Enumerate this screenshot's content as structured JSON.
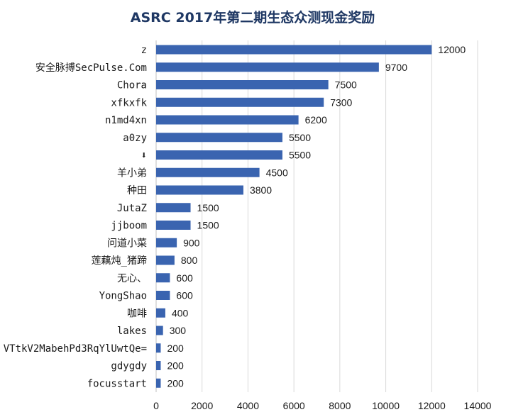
{
  "chart_data": {
    "type": "bar",
    "orientation": "horizontal",
    "title": "ASRC 2017年第二期生态众测现金奖励",
    "xlabel": "",
    "ylabel": "",
    "xlim": [
      0,
      14000
    ],
    "x_ticks": [
      "0",
      "2000",
      "4000",
      "6000",
      "8000",
      "10000",
      "12000",
      "14000"
    ],
    "grid": true,
    "legend": "none",
    "bar_color": "#3a64b0",
    "categories": [
      "z",
      "安全脉搏SecPulse.Com",
      "Chora",
      "xfkxfk",
      "n1md4xn",
      "a0zy",
      "⬇",
      "羊小弟",
      "种田",
      "JutaZ",
      "jjboom",
      "问道小菜",
      "莲藕炖_猪蹄",
      "无心、",
      "YongShao",
      "咖啡",
      "lakes",
      "VTtkV2MabehPd3RqYlUwtQe=",
      "gdygdy",
      "focusstart"
    ],
    "values": [
      12000,
      9700,
      7500,
      7300,
      6200,
      5500,
      5500,
      4500,
      3800,
      1500,
      1500,
      900,
      800,
      600,
      600,
      400,
      300,
      200,
      200,
      200
    ],
    "value_labels": [
      "12000",
      "9700",
      "7500",
      "7300",
      "6200",
      "5500",
      "5500",
      "4500",
      "3800",
      "1500",
      "1500",
      "900",
      "800",
      "600",
      "600",
      "400",
      "300",
      "200",
      "200",
      "200"
    ]
  }
}
